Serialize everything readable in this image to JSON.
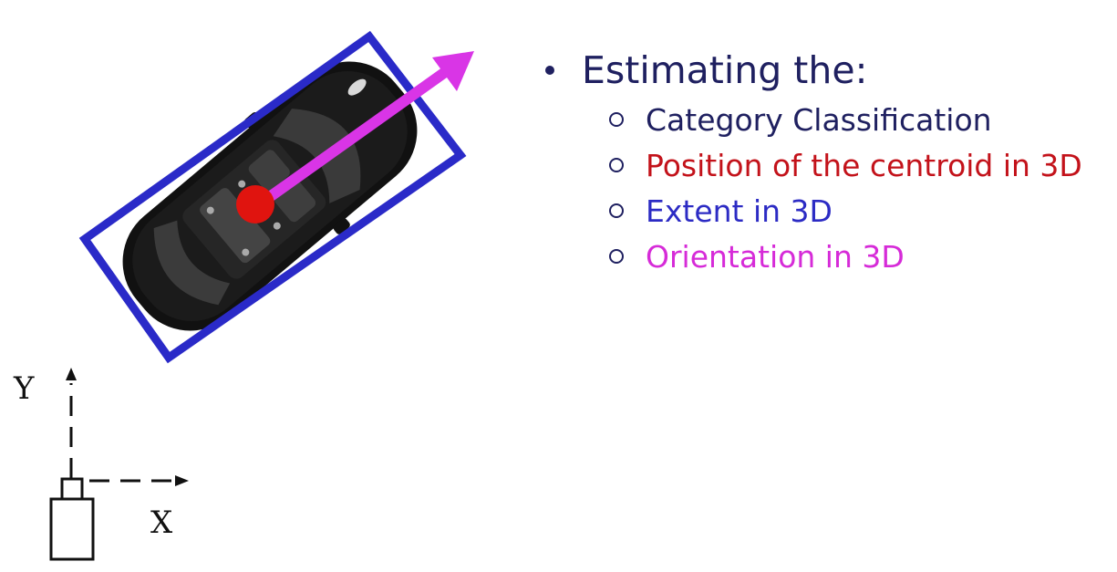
{
  "bullets": {
    "heading": "Estimating the:",
    "items": [
      {
        "label": "Category Classification",
        "color": "#1f2060"
      },
      {
        "label": "Position of the centroid in 3D",
        "color": "#c3121a"
      },
      {
        "label": "Extent in 3D",
        "color": "#2c2bc4"
      },
      {
        "label": "Orientation in 3D",
        "color": "#d62bd8"
      }
    ]
  },
  "axes": {
    "x_label": "X",
    "y_label": "Y"
  },
  "colors": {
    "box": "#2a2ac8",
    "centroid": "#e0140f",
    "arrow": "#d935e6",
    "car": "#111111",
    "text": "#1f2060"
  }
}
